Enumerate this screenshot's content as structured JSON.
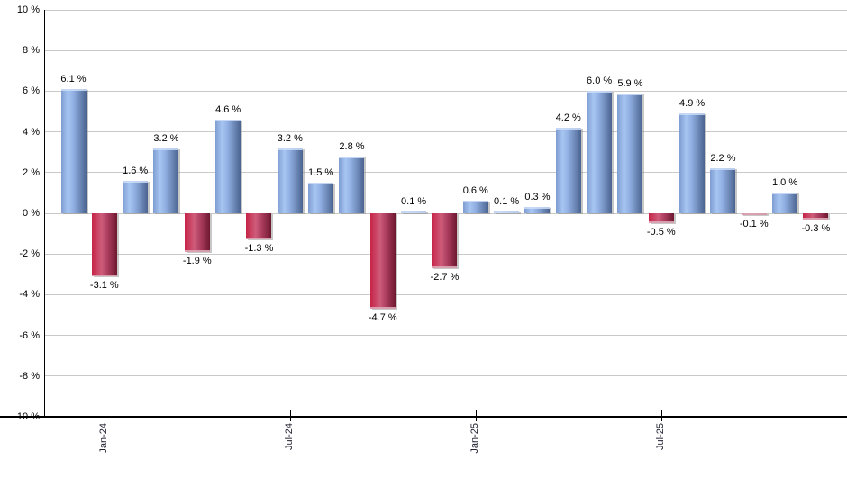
{
  "chart_data": {
    "type": "bar",
    "title": "",
    "values": [
      6.1,
      -3.1,
      1.6,
      3.2,
      -1.9,
      4.6,
      -1.3,
      3.2,
      1.5,
      2.8,
      -4.7,
      0.1,
      -2.7,
      0.6,
      0.1,
      0.3,
      4.2,
      6.0,
      5.9,
      -0.5,
      4.9,
      2.2,
      -0.1,
      1.0,
      -0.3
    ],
    "bar_labels": [
      "6.1 %",
      "-3.1 %",
      "1.6 %",
      "3.2 %",
      "-1.9 %",
      "4.6 %",
      "-1.3 %",
      "3.2 %",
      "1.5 %",
      "2.8 %",
      "-4.7 %",
      "0.1 %",
      "-2.7 %",
      "0.6 %",
      "0.1 %",
      "0.3 %",
      "4.2 %",
      "6.0 %",
      "5.9 %",
      "-0.5 %",
      "4.9 %",
      "2.2 %",
      "-0.1 %",
      "1.0 %",
      "-0.3 %"
    ],
    "y_axis": {
      "min": -10,
      "max": 10,
      "grid": true,
      "ticks": [
        "10 %",
        "8 %",
        "6 %",
        "4 %",
        "2 %",
        "0 %",
        "-2 %",
        "-4 %",
        "-6 %",
        "-8 %",
        "-10 %"
      ]
    },
    "x_axis": {
      "ticks": [
        {
          "bar_index": 1,
          "label": "Jan-24"
        },
        {
          "bar_index": 7,
          "label": "Jul-24"
        },
        {
          "bar_index": 13,
          "label": "Jan-25"
        },
        {
          "bar_index": 19,
          "label": "Jul-25"
        }
      ]
    },
    "colors": {
      "positive": "#7e9cd0",
      "positive_highlight": "#a8c6f2",
      "negative": "#c62347",
      "negative_highlight": "#ce5c7a",
      "gridline": "#c9c9c9",
      "axis": "#000000"
    },
    "legend_position": "none"
  }
}
